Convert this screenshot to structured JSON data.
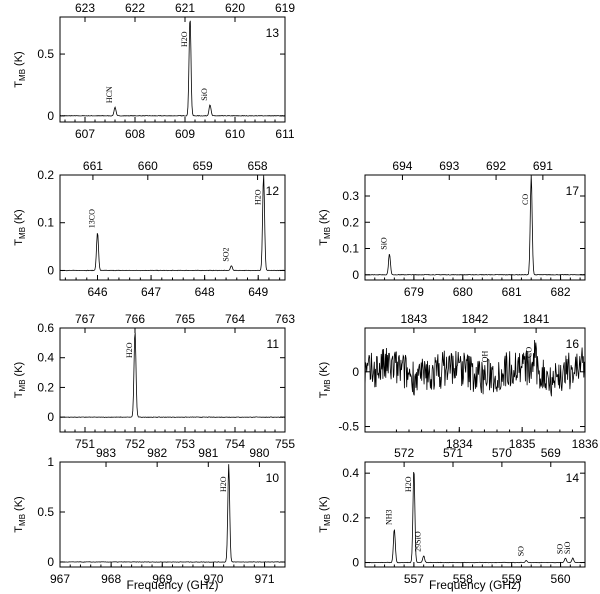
{
  "figure": {
    "x_label": "Frequency (GHz)",
    "y_label_main": "T",
    "y_label_sub": "MB",
    "y_label_unit": "(K)"
  },
  "chart_data": [
    {
      "type": "line",
      "panel": "13",
      "show_xlabel": false,
      "xlim": [
        606.5,
        611.0
      ],
      "ylim": [
        -0.05,
        0.8
      ],
      "x_ticks": [
        607,
        608,
        609,
        610,
        611
      ],
      "y_ticks": [
        0,
        0.5
      ],
      "top_ticks": [
        623,
        622,
        621,
        620,
        619
      ],
      "top_range": [
        623.5,
        619
      ],
      "lines": [
        {
          "label": "HCN",
          "x": 607.6,
          "y": 0.07
        },
        {
          "label": "H2O",
          "x": 609.1,
          "y": 0.8
        },
        {
          "label": "SiO",
          "x": 609.5,
          "y": 0.09
        }
      ]
    },
    {
      "type": "line",
      "panel": "12",
      "show_xlabel": false,
      "xlim": [
        645.3,
        649.5
      ],
      "ylim": [
        -0.02,
        0.2
      ],
      "x_ticks": [
        646,
        647,
        648,
        649
      ],
      "y_ticks": [
        0,
        0.1,
        0.2
      ],
      "top_ticks": [
        661,
        660,
        659,
        658
      ],
      "top_range": [
        661.6,
        657.5
      ],
      "lines": [
        {
          "label": "13CO",
          "x": 646.0,
          "y": 0.08
        },
        {
          "label": "SO2",
          "x": 648.5,
          "y": 0.01
        },
        {
          "label": "H2O",
          "x": 649.1,
          "y": 0.2
        }
      ]
    },
    {
      "type": "line",
      "panel": "17",
      "show_xlabel": false,
      "xlim": [
        678.0,
        682.5
      ],
      "ylim": [
        -0.02,
        0.38
      ],
      "x_ticks": [
        679,
        680,
        681,
        682
      ],
      "y_ticks": [
        0,
        0.1,
        0.2,
        0.3
      ],
      "top_ticks": [
        694,
        693,
        692,
        691
      ],
      "top_range": [
        694.8,
        690.1
      ],
      "lines": [
        {
          "label": "SiO",
          "x": 678.5,
          "y": 0.08
        },
        {
          "label": "CO",
          "x": 681.4,
          "y": 0.38
        }
      ]
    },
    {
      "type": "line",
      "panel": "11",
      "show_xlabel": false,
      "xlim": [
        750.5,
        755.0
      ],
      "ylim": [
        -0.1,
        0.6
      ],
      "x_ticks": [
        751,
        752,
        753,
        754,
        755
      ],
      "y_ticks": [
        0,
        0.2,
        0.4,
        0.6
      ],
      "top_ticks": [
        767,
        766,
        765,
        764,
        763
      ],
      "top_range": [
        767.5,
        763
      ],
      "lines": [
        {
          "label": "H2O",
          "x": 752.0,
          "y": 0.58
        }
      ]
    },
    {
      "type": "line",
      "panel": "16",
      "show_xlabel": false,
      "xlim": [
        1832.5,
        1836.0
      ],
      "ylim": [
        -0.55,
        0.4
      ],
      "x_ticks": [
        1834,
        1835,
        1836
      ],
      "y_ticks": [
        -0.5,
        0
      ],
      "top_ticks": [
        1843,
        1842,
        1841
      ],
      "top_range": [
        1843.8,
        1840.2
      ],
      "lines": [
        {
          "label": "OH",
          "x": 1834.5,
          "y": 0.05
        },
        {
          "label": "CO",
          "x": 1835.2,
          "y": 0.2
        }
      ]
    },
    {
      "type": "line",
      "panel": "10",
      "show_xlabel": true,
      "xlim": [
        967.0,
        971.4
      ],
      "ylim": [
        -0.05,
        1.0
      ],
      "x_ticks": [
        967,
        968,
        969,
        970,
        971
      ],
      "y_ticks": [
        0,
        0.5,
        1
      ],
      "top_ticks": [
        983,
        982,
        981,
        980
      ],
      "top_range": [
        983.9,
        979.5
      ],
      "lines": [
        {
          "label": "H2O",
          "x": 970.3,
          "y": 0.98
        }
      ]
    },
    {
      "type": "line",
      "panel": "14",
      "show_xlabel": true,
      "xlim": [
        556.0,
        560.5
      ],
      "ylim": [
        -0.02,
        0.45
      ],
      "x_ticks": [
        557,
        558,
        559,
        560
      ],
      "y_ticks": [
        0,
        0.2,
        0.4
      ],
      "top_ticks": [
        572,
        571,
        570,
        569
      ],
      "top_range": [
        572.8,
        568.3
      ],
      "lines": [
        {
          "label": "NH3",
          "x": 556.6,
          "y": 0.15
        },
        {
          "label": "H2O",
          "x": 557.0,
          "y": 0.42
        },
        {
          "label": "29SiO",
          "x": 557.2,
          "y": 0.03
        },
        {
          "label": "SO",
          "x": 559.3,
          "y": 0.01
        },
        {
          "label": "SO",
          "x": 560.1,
          "y": 0.02
        },
        {
          "label": "SiO",
          "x": 560.25,
          "y": 0.02
        }
      ]
    }
  ]
}
